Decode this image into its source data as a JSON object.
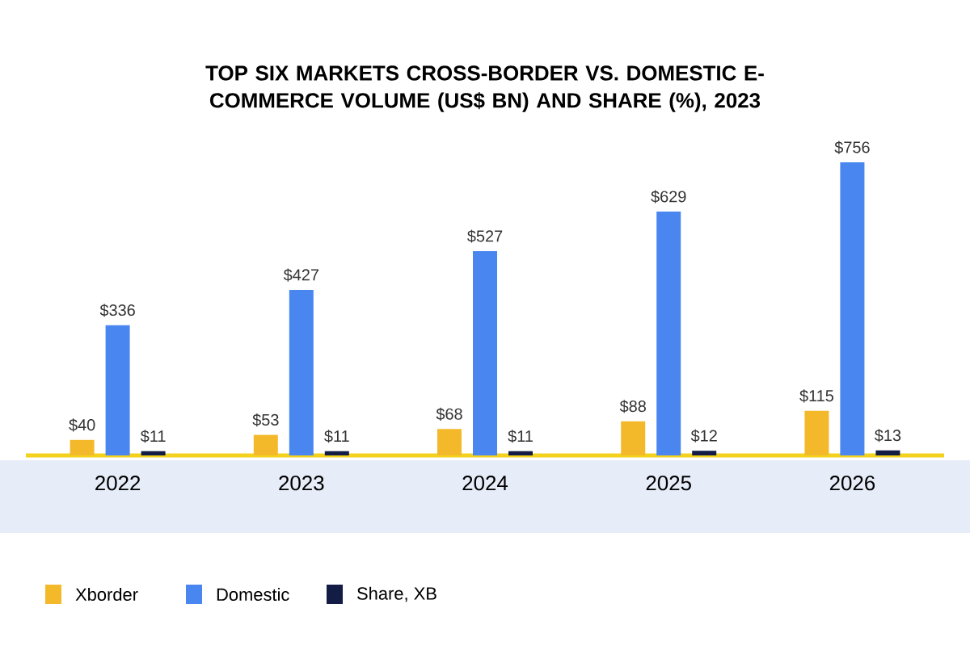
{
  "chart_data": {
    "type": "bar",
    "title": "TOP SIX MARKETS CROSS-BORDER VS. DOMESTIC E-COMMERCE VOLUME (US$ BN) AND SHARE (%), 2023",
    "categories": [
      "2022",
      "2023",
      "2024",
      "2025",
      "2026"
    ],
    "series": [
      {
        "name": "Xborder",
        "color": "#f4b92b",
        "values": [
          40,
          53,
          68,
          88,
          115
        ],
        "value_labels": [
          "$40",
          "$53",
          "$68",
          "$88",
          "$115"
        ]
      },
      {
        "name": "Domestic",
        "color": "#4a86f0",
        "values": [
          336,
          427,
          527,
          629,
          756
        ],
        "value_labels": [
          "$336",
          "$427",
          "$527",
          "$629",
          "$756"
        ]
      },
      {
        "name": "Share, XB",
        "color": "#121c45",
        "values": [
          11,
          11,
          11,
          12,
          13
        ],
        "value_labels": [
          "$11",
          "$11",
          "$11",
          "$12",
          "$13"
        ]
      }
    ],
    "legend": "bottom left",
    "tick_labels": "x"
  }
}
